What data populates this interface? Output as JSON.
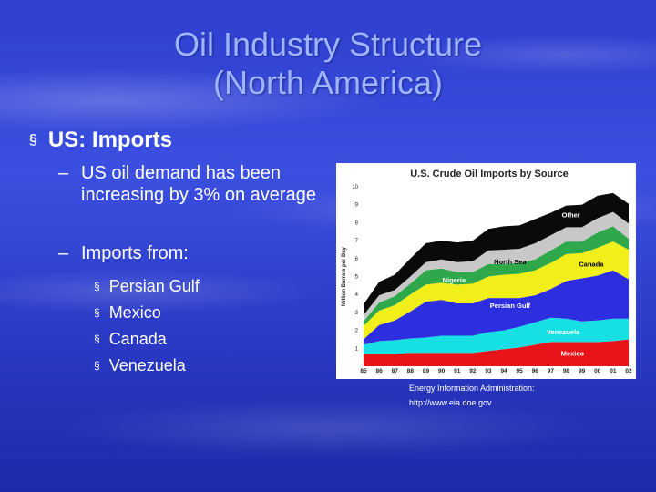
{
  "slide": {
    "title_line1": "Oil Industry Structure",
    "title_line2": "(North America)",
    "bullet": "US: Imports",
    "points": [
      "US oil demand has been increasing by 3% on average",
      "Imports from:"
    ],
    "sources": [
      "Persian Gulf",
      "Mexico",
      "Canada",
      "Venezuela"
    ],
    "credit_line1": "Energy Information Administration:",
    "credit_line2": "http://www.eia.doe.gov",
    "colors": {
      "background": "#2f3fcf",
      "title": "#9fb4ff"
    }
  },
  "chart_data": {
    "type": "area",
    "stacked": true,
    "title": "U.S. Crude Oil Imports by Source",
    "ylabel": "Million Barrels per Day",
    "xlabel": "",
    "ylim": [
      0,
      10
    ],
    "y_ticks": [
      1,
      2,
      3,
      4,
      5,
      6,
      7,
      8,
      9,
      10
    ],
    "x": [
      "85",
      "86",
      "87",
      "88",
      "89",
      "90",
      "91",
      "92",
      "93",
      "94",
      "95",
      "96",
      "97",
      "98",
      "99",
      "00",
      "01",
      "02"
    ],
    "series": [
      {
        "name": "Mexico",
        "color": "#e8141a",
        "values": [
          0.7,
          0.7,
          0.7,
          0.75,
          0.75,
          0.75,
          0.75,
          0.75,
          0.85,
          0.95,
          1.05,
          1.2,
          1.35,
          1.35,
          1.35,
          1.35,
          1.4,
          1.5
        ]
      },
      {
        "name": "Venezuela",
        "color": "#16e0e4",
        "values": [
          0.5,
          0.7,
          0.75,
          0.8,
          0.85,
          0.95,
          0.95,
          0.95,
          1.05,
          1.05,
          1.15,
          1.25,
          1.35,
          1.3,
          1.15,
          1.2,
          1.25,
          1.15
        ]
      },
      {
        "name": "Persian Gulf",
        "color": "#2d2ee0",
        "values": [
          0.3,
          0.9,
          1.1,
          1.5,
          2.0,
          2.0,
          1.8,
          1.8,
          1.9,
          1.8,
          1.6,
          1.5,
          1.6,
          2.1,
          2.4,
          2.5,
          2.7,
          2.2
        ]
      },
      {
        "name": "Canada",
        "color": "#f2ee1a",
        "values": [
          0.75,
          0.8,
          0.85,
          0.95,
          0.95,
          0.95,
          1.05,
          1.1,
          1.2,
          1.3,
          1.35,
          1.4,
          1.45,
          1.5,
          1.4,
          1.55,
          1.6,
          1.65
        ]
      },
      {
        "name": "Nigeria",
        "color": "#2ea84a",
        "values": [
          0.25,
          0.45,
          0.5,
          0.6,
          0.8,
          0.8,
          0.7,
          0.65,
          0.7,
          0.6,
          0.6,
          0.6,
          0.7,
          0.7,
          0.65,
          0.85,
          0.85,
          0.6
        ]
      },
      {
        "name": "North Sea",
        "color": "#c8c8c8",
        "values": [
          0.35,
          0.4,
          0.35,
          0.4,
          0.45,
          0.5,
          0.55,
          0.6,
          0.75,
          0.8,
          0.8,
          0.9,
          0.85,
          0.8,
          0.8,
          0.8,
          0.8,
          0.85
        ]
      },
      {
        "name": "Other",
        "color": "#0a0a0a",
        "values": [
          0.6,
          0.75,
          0.85,
          1.0,
          1.05,
          1.05,
          1.1,
          1.15,
          1.2,
          1.3,
          1.3,
          1.35,
          1.25,
          1.2,
          1.25,
          1.25,
          1.05,
          1.1
        ]
      }
    ]
  }
}
